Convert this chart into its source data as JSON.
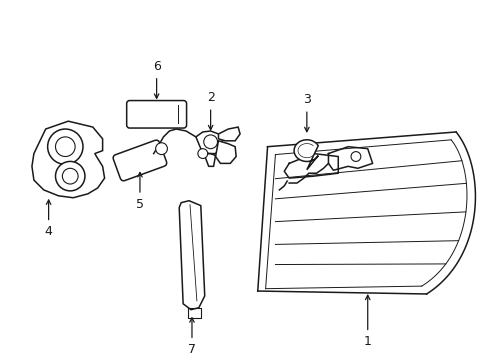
{
  "background_color": "#ffffff",
  "line_color": "#1a1a1a",
  "line_width": 1.1,
  "label_fontsize": 9,
  "fig_w": 4.89,
  "fig_h": 3.6,
  "dpi": 100
}
